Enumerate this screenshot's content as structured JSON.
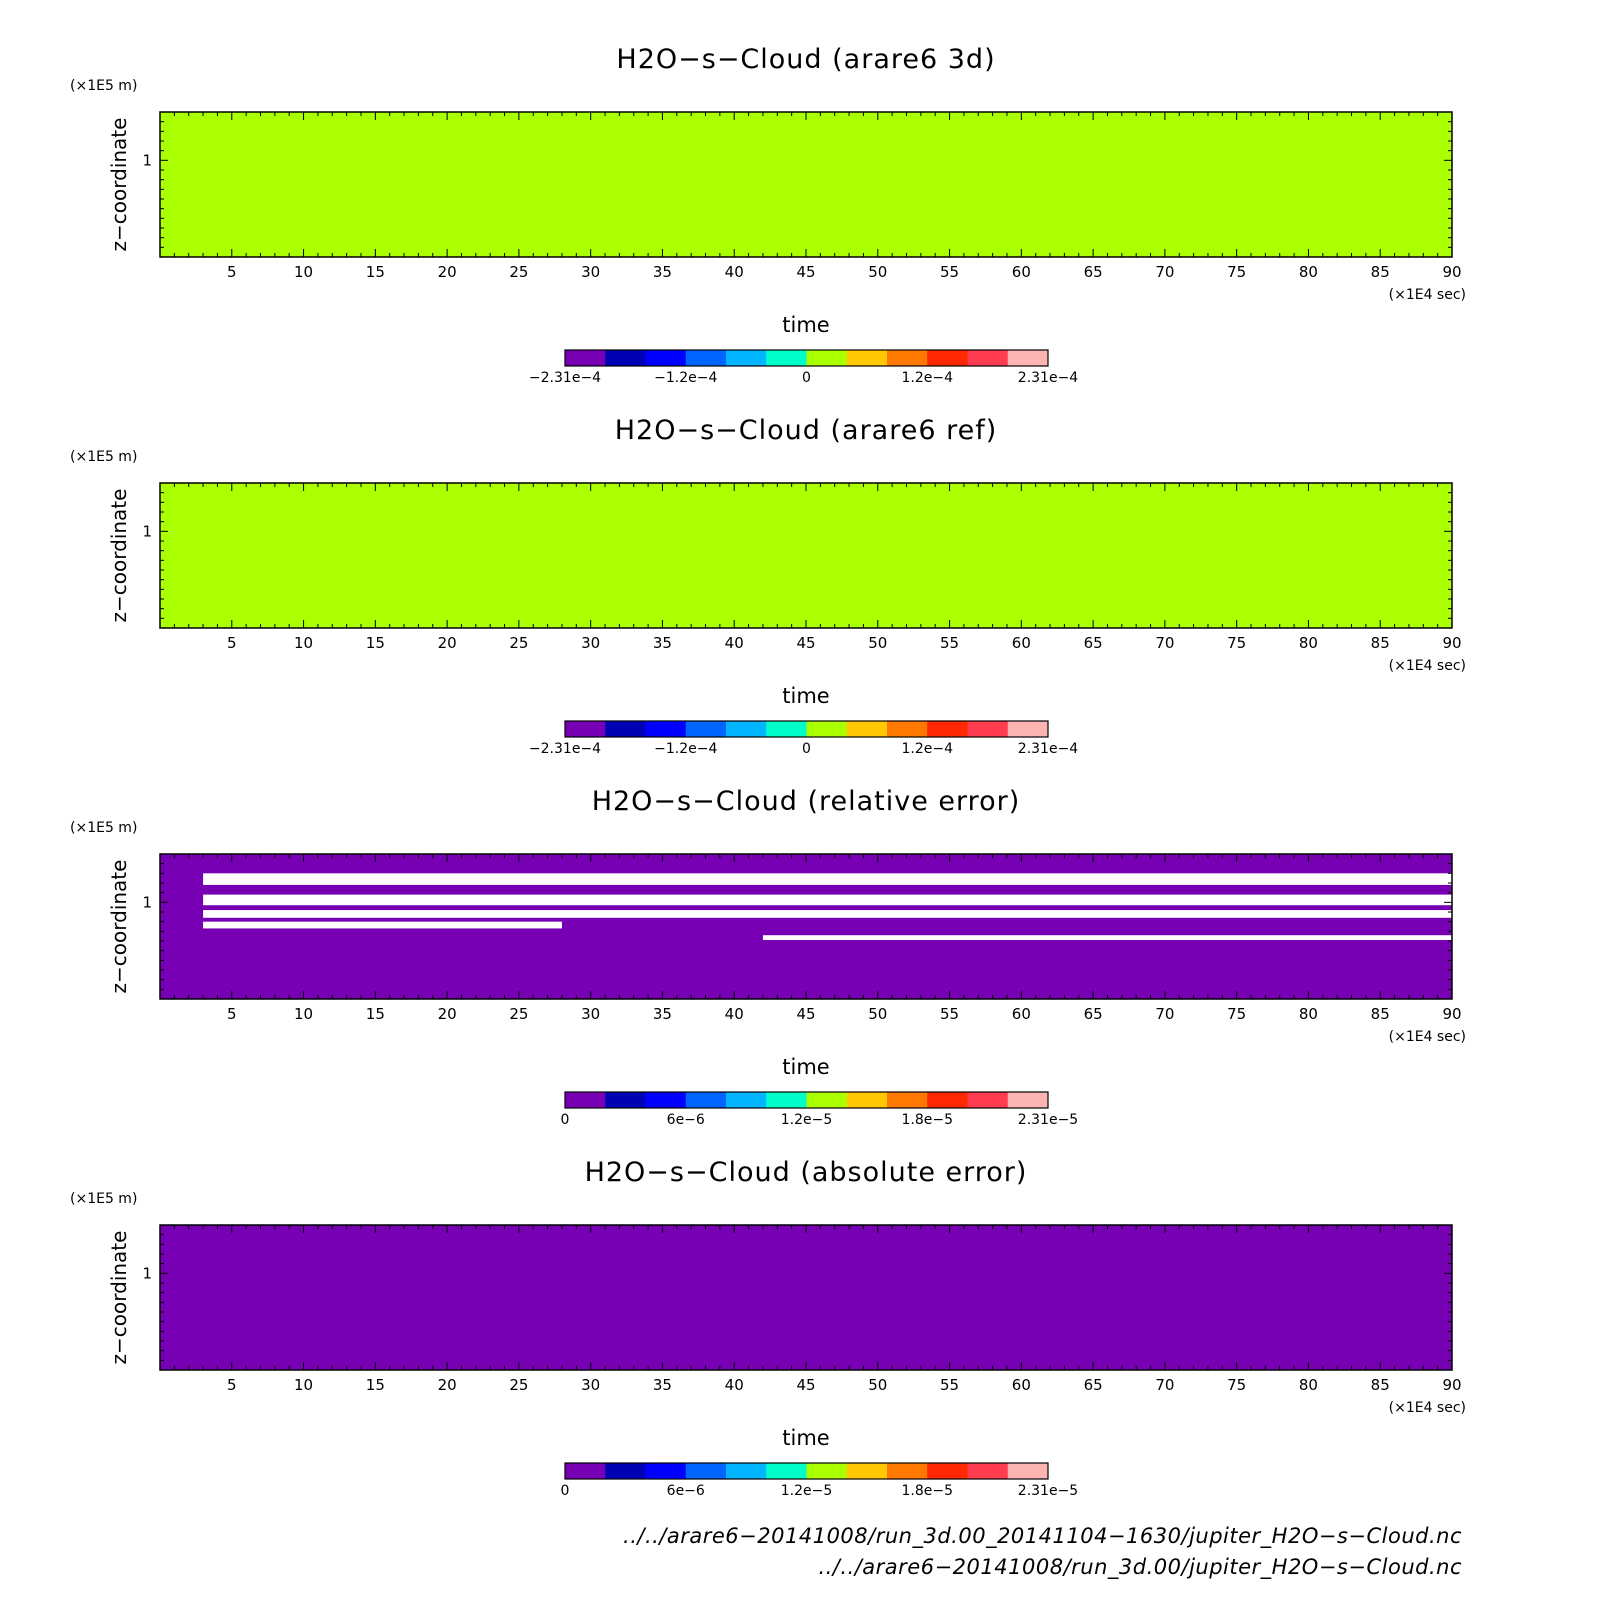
{
  "chart_data": [
    {
      "type": "heatmap",
      "title": "H2O−s−Cloud (arare6 3d)",
      "xlabel": "time",
      "ylabel": "z−coordinate",
      "x_unit": "(×1E4 sec)",
      "y_unit": "(×1E5 m)",
      "xlim": [
        0,
        90
      ],
      "ylim": [
        0,
        1.5
      ],
      "xticks": [
        "5",
        "10",
        "15",
        "20",
        "25",
        "30",
        "35",
        "40",
        "45",
        "50",
        "55",
        "60",
        "65",
        "70",
        "75",
        "80",
        "85",
        "90"
      ],
      "yticks": [
        "1"
      ],
      "background_value": 0,
      "background_color": "#aaff00",
      "colorbar": {
        "colors": [
          "#7800b4",
          "#0000b4",
          "#0000ff",
          "#0064ff",
          "#00b4ff",
          "#00ffc8",
          "#aaff00",
          "#ffc800",
          "#ff7800",
          "#ff2800",
          "#ff3c50",
          "#ffb4b4"
        ],
        "tick_labels": [
          "−2.31e−4",
          "−1.2e−4",
          "0",
          "1.2e−4",
          "2.31e−4"
        ],
        "range": [
          -0.000231,
          0.000231
        ]
      }
    },
    {
      "type": "heatmap",
      "title": "H2O−s−Cloud (arare6 ref)",
      "xlabel": "time",
      "ylabel": "z−coordinate",
      "x_unit": "(×1E4 sec)",
      "y_unit": "(×1E5 m)",
      "xlim": [
        0,
        90
      ],
      "ylim": [
        0,
        1.5
      ],
      "xticks": [
        "5",
        "10",
        "15",
        "20",
        "25",
        "30",
        "35",
        "40",
        "45",
        "50",
        "55",
        "60",
        "65",
        "70",
        "75",
        "80",
        "85",
        "90"
      ],
      "yticks": [
        "1"
      ],
      "background_value": 0,
      "background_color": "#aaff00",
      "colorbar": {
        "colors": [
          "#7800b4",
          "#0000b4",
          "#0000ff",
          "#0064ff",
          "#00b4ff",
          "#00ffc8",
          "#aaff00",
          "#ffc800",
          "#ff7800",
          "#ff2800",
          "#ff3c50",
          "#ffb4b4"
        ],
        "tick_labels": [
          "−2.31e−4",
          "−1.2e−4",
          "0",
          "1.2e−4",
          "2.31e−4"
        ],
        "range": [
          -0.000231,
          0.000231
        ]
      }
    },
    {
      "type": "heatmap",
      "title": "H2O−s−Cloud (relative error)",
      "xlabel": "time",
      "ylabel": "z−coordinate",
      "x_unit": "(×1E4 sec)",
      "y_unit": "(×1E5 m)",
      "xlim": [
        0,
        90
      ],
      "ylim": [
        0,
        1.5
      ],
      "xticks": [
        "5",
        "10",
        "15",
        "20",
        "25",
        "30",
        "35",
        "40",
        "45",
        "50",
        "55",
        "60",
        "65",
        "70",
        "75",
        "80",
        "85",
        "90"
      ],
      "yticks": [
        "1"
      ],
      "background_value": 0,
      "background_color": "#7800b4",
      "colorbar": {
        "colors": [
          "#7800b4",
          "#0000b4",
          "#0000ff",
          "#0064ff",
          "#00b4ff",
          "#00ffc8",
          "#aaff00",
          "#ffc800",
          "#ff7800",
          "#ff2800",
          "#ff3c50",
          "#ffb4b4"
        ],
        "tick_labels": [
          "0",
          "6e−6",
          "1.2e−5",
          "1.8e−5",
          "2.31e−5"
        ],
        "range": [
          0,
          2.31e-05
        ]
      },
      "undefined_bands": [
        {
          "x": [
            3,
            90
          ],
          "z": [
            1.18,
            1.3
          ]
        },
        {
          "x": [
            3,
            90
          ],
          "z": [
            0.97,
            1.08
          ]
        },
        {
          "x": [
            3,
            90
          ],
          "z": [
            0.84,
            0.92
          ]
        },
        {
          "x": [
            3,
            28
          ],
          "z": [
            0.73,
            0.8
          ]
        },
        {
          "x": [
            42,
            90
          ],
          "z": [
            0.61,
            0.66
          ]
        }
      ]
    },
    {
      "type": "heatmap",
      "title": "H2O−s−Cloud (absolute error)",
      "xlabel": "time",
      "ylabel": "z−coordinate",
      "x_unit": "(×1E4 sec)",
      "y_unit": "(×1E5 m)",
      "xlim": [
        0,
        90
      ],
      "ylim": [
        0,
        1.5
      ],
      "xticks": [
        "5",
        "10",
        "15",
        "20",
        "25",
        "30",
        "35",
        "40",
        "45",
        "50",
        "55",
        "60",
        "65",
        "70",
        "75",
        "80",
        "85",
        "90"
      ],
      "yticks": [
        "1"
      ],
      "background_value": 0,
      "background_color": "#7800b4",
      "colorbar": {
        "colors": [
          "#7800b4",
          "#0000b4",
          "#0000ff",
          "#0064ff",
          "#00b4ff",
          "#00ffc8",
          "#aaff00",
          "#ffc800",
          "#ff7800",
          "#ff2800",
          "#ff3c50",
          "#ffb4b4"
        ],
        "tick_labels": [
          "0",
          "6e−6",
          "1.2e−5",
          "1.8e−5",
          "2.31e−5"
        ],
        "range": [
          0,
          2.31e-05
        ]
      }
    }
  ],
  "footer": {
    "line1": "../../arare6−20141008/run_3d.00_20141104−1630/jupiter_H2O−s−Cloud.nc",
    "line2": "../../arare6−20141008/run_3d.00/jupiter_H2O−s−Cloud.nc"
  }
}
